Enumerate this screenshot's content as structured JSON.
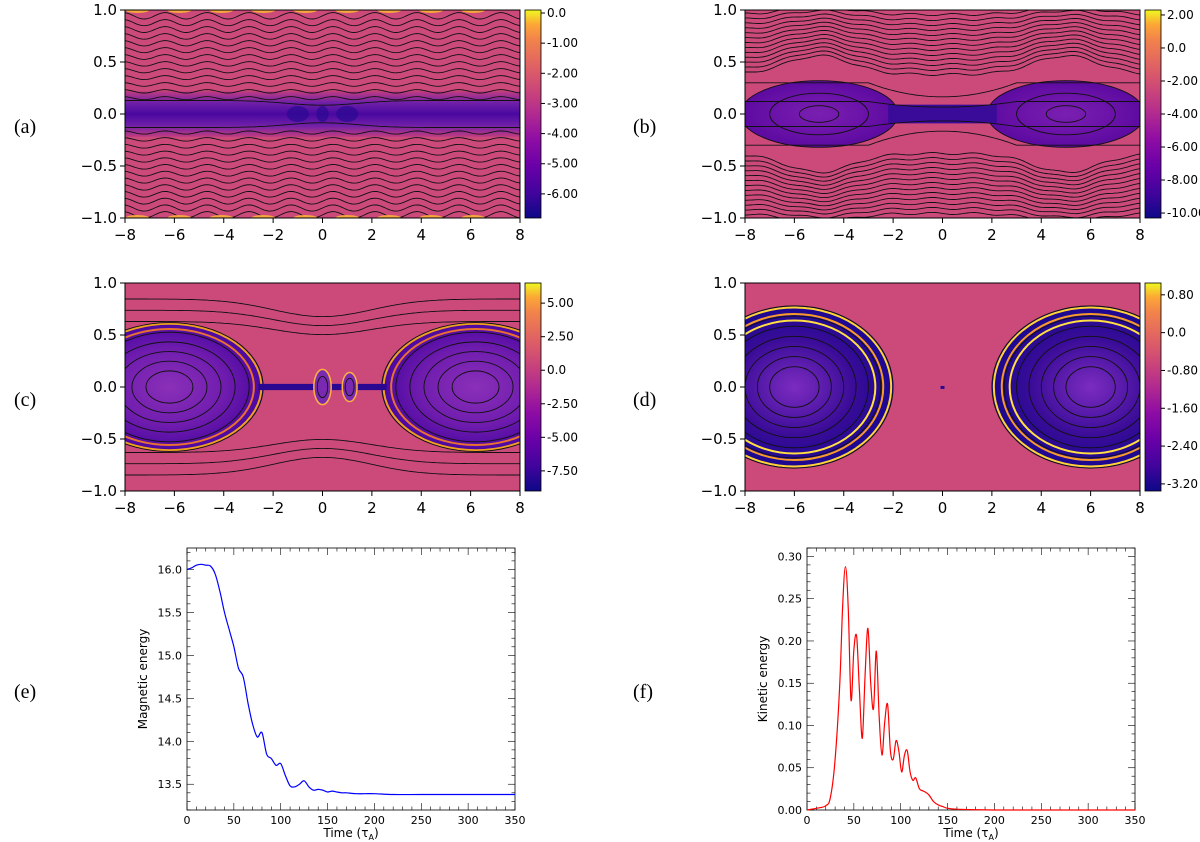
{
  "chart_data": [
    {
      "id": "a",
      "panel_label": "(a)",
      "type": "heatmap",
      "xlim": [
        -8,
        8
      ],
      "ylim": [
        -1,
        1
      ],
      "x_ticks": [
        "-8",
        "-6",
        "-4",
        "-2",
        "0",
        "2",
        "4",
        "6",
        "8"
      ],
      "y_ticks": [
        "1.0",
        "0.5",
        "0.0",
        "-0.5",
        "-1.0"
      ],
      "colorbar": {
        "range": [
          -6.8,
          0.1
        ],
        "ticks": [
          "0.0",
          "-1.00",
          "-2.00",
          "-3.00",
          "-4.00",
          "-5.00",
          "-6.00"
        ]
      },
      "field_lines": "near-horizontal wavy contours, central current sheet with plasmoids"
    },
    {
      "id": "b",
      "panel_label": "(b)",
      "type": "heatmap",
      "xlim": [
        -8,
        8
      ],
      "ylim": [
        -1,
        1
      ],
      "x_ticks": [
        "-8",
        "-6",
        "-4",
        "-2",
        "0",
        "2",
        "4",
        "6",
        "8"
      ],
      "y_ticks": [
        "1.0",
        "0.5",
        "0.0",
        "-0.5",
        "-1.0"
      ],
      "colorbar": {
        "range": [
          -10.3,
          2.3
        ],
        "ticks": [
          "2.00",
          "0.0",
          "-2.00",
          "-4.00",
          "-6.00",
          "-8.00",
          "-10.00"
        ]
      },
      "field_lines": "two magnetic islands centred at x=±5 joined by a thin current sheet"
    },
    {
      "id": "c",
      "panel_label": "(c)",
      "type": "heatmap",
      "xlim": [
        -8,
        8
      ],
      "ylim": [
        -1,
        1
      ],
      "x_ticks": [
        "-8",
        "-6",
        "-4",
        "-2",
        "0",
        "2",
        "4",
        "6",
        "8"
      ],
      "y_ticks": [
        "1.0",
        "0.5",
        "0.0",
        "-0.5",
        "-1.0"
      ],
      "colorbar": {
        "range": [
          -9.0,
          6.5
        ],
        "ticks": [
          "5.00",
          "2.50",
          "0.0",
          "-2.50",
          "-5.00",
          "-7.50"
        ]
      },
      "field_lines": "large islands at x=±6, small plasmoids near x=0 and x=1"
    },
    {
      "id": "d",
      "panel_label": "(d)",
      "type": "heatmap",
      "xlim": [
        -8,
        8
      ],
      "ylim": [
        -1,
        1
      ],
      "x_ticks": [
        "-8",
        "-6",
        "-4",
        "-2",
        "0",
        "2",
        "4",
        "6",
        "8"
      ],
      "y_ticks": [
        "1.0",
        "0.5",
        "0.0",
        "-0.5",
        "-1.0"
      ],
      "colorbar": {
        "range": [
          -3.35,
          1.05
        ],
        "ticks": [
          "0.80",
          "0.0",
          "-0.80",
          "-1.60",
          "-2.40",
          "-3.20"
        ]
      },
      "field_lines": "two merged islands at x=±6 with many nested contours"
    },
    {
      "id": "e",
      "panel_label": "(e)",
      "type": "line",
      "xlabel_main": "Time (τ",
      "xlabel_sub": "A",
      "xlabel_close": ")",
      "ylabel": "Magnetic energy",
      "color": "#0000ff",
      "xlim": [
        0,
        350
      ],
      "ylim": [
        13.2,
        16.25
      ],
      "x_ticks": [
        0,
        50,
        100,
        150,
        200,
        250,
        300,
        350
      ],
      "y_ticks": [
        13.5,
        14.0,
        14.5,
        15.0,
        15.5,
        16.0
      ],
      "x": [
        0,
        5,
        10,
        15,
        20,
        25,
        30,
        35,
        40,
        45,
        50,
        55,
        60,
        65,
        70,
        75,
        80,
        85,
        90,
        95,
        100,
        105,
        110,
        115,
        120,
        125,
        130,
        135,
        140,
        145,
        150,
        155,
        160,
        165,
        170,
        180,
        190,
        200,
        220,
        250,
        300,
        350
      ],
      "y": [
        16.0,
        16.02,
        16.05,
        16.06,
        16.05,
        16.04,
        15.95,
        15.75,
        15.5,
        15.3,
        15.1,
        14.85,
        14.75,
        14.45,
        14.2,
        14.05,
        14.1,
        13.85,
        13.8,
        13.72,
        13.74,
        13.6,
        13.48,
        13.47,
        13.5,
        13.54,
        13.47,
        13.43,
        13.44,
        13.43,
        13.41,
        13.42,
        13.41,
        13.4,
        13.4,
        13.39,
        13.39,
        13.39,
        13.38,
        13.38,
        13.38,
        13.38
      ]
    },
    {
      "id": "f",
      "panel_label": "(f)",
      "type": "line",
      "xlabel_main": "Time (τ",
      "xlabel_sub": "A",
      "xlabel_close": ")",
      "ylabel": "Kinetic energy",
      "color": "#ff0000",
      "xlim": [
        0,
        350
      ],
      "ylim": [
        0,
        0.31
      ],
      "x_ticks": [
        0,
        50,
        100,
        150,
        200,
        250,
        300,
        350
      ],
      "y_ticks": [
        0.0,
        0.05,
        0.1,
        0.15,
        0.2,
        0.25,
        0.3
      ],
      "x": [
        0,
        10,
        20,
        25,
        30,
        35,
        38,
        41,
        44,
        47,
        50,
        53,
        56,
        59,
        62,
        65,
        68,
        71,
        74,
        77,
        80,
        83,
        86,
        89,
        92,
        95,
        98,
        101,
        104,
        107,
        110,
        113,
        116,
        120,
        125,
        130,
        135,
        140,
        145,
        150,
        160,
        175,
        200,
        250,
        300,
        350
      ],
      "y": [
        0.0,
        0.002,
        0.005,
        0.015,
        0.06,
        0.15,
        0.24,
        0.288,
        0.24,
        0.13,
        0.19,
        0.205,
        0.14,
        0.085,
        0.16,
        0.215,
        0.15,
        0.12,
        0.188,
        0.11,
        0.065,
        0.105,
        0.125,
        0.07,
        0.06,
        0.082,
        0.07,
        0.045,
        0.065,
        0.07,
        0.045,
        0.035,
        0.038,
        0.025,
        0.022,
        0.018,
        0.01,
        0.006,
        0.004,
        0.002,
        0.001,
        0.0005,
        0.0,
        0.0,
        0.0,
        0.0
      ]
    }
  ]
}
